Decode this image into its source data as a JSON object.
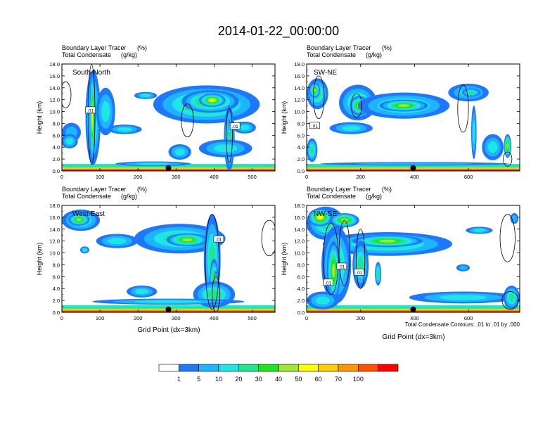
{
  "title": "2014-01-22_00:00:00",
  "panel_labels": {
    "tracer": "Boundary Layer Tracer",
    "tracer_unit": "(%)",
    "condensate": "Total Condensate",
    "condensate_unit": "(g/kg)"
  },
  "ylabel": "Height (km)",
  "xlabel": "Grid Point (dx=3km)",
  "contour_note": "Total Condensate Contours: .01 to .01 by .000",
  "colorbar": {
    "colors": [
      "#ffffff",
      "#1e78ff",
      "#1eb4ff",
      "#1ee6e6",
      "#1ee68c",
      "#1ee61e",
      "#a0e632",
      "#ffff00",
      "#ffcd00",
      "#ff9600",
      "#ff5000",
      "#ff0000"
    ],
    "labels": [
      "1",
      "5",
      "10",
      "20",
      "30",
      "40",
      "50",
      "60",
      "70",
      "100"
    ]
  },
  "chart_data": [
    {
      "type": "heatmap",
      "name": "South-North",
      "x_ticks": [
        0,
        100,
        200,
        300,
        400,
        500
      ],
      "y_ticks": [
        "0.0",
        "2.0",
        "4.0",
        "6.0",
        "8.0",
        "10.0",
        "12.0",
        "14.0",
        "16.0",
        "18.0"
      ],
      "xlim": [
        0,
        560
      ],
      "ylim": [
        0,
        18
      ],
      "marker_x": 280,
      "contour_labels": [
        {
          "text": ".01",
          "x": 75,
          "y": 10.2
        },
        {
          "text": ".01",
          "x": 455,
          "y": 7.5
        }
      ],
      "blobs": [
        {
          "x": 380,
          "y": 11.2,
          "rx": 140,
          "ry": 3.2,
          "level": 5
        },
        {
          "x": 390,
          "y": 11.7,
          "rx": 75,
          "ry": 1.9,
          "level": 6
        },
        {
          "x": 395,
          "y": 11.9,
          "rx": 35,
          "ry": 1.1,
          "level": 7
        },
        {
          "x": 220,
          "y": 12.7,
          "rx": 30,
          "ry": 0.6,
          "level": 3
        },
        {
          "x": 440,
          "y": 5.5,
          "rx": 14,
          "ry": 5.5,
          "level": 4
        },
        {
          "x": 440,
          "y": 4.5,
          "rx": 5,
          "ry": 4.2,
          "level": 7
        },
        {
          "x": 430,
          "y": 3.8,
          "rx": 70,
          "ry": 1.5,
          "level": 3
        },
        {
          "x": 480,
          "y": 7.3,
          "rx": 30,
          "ry": 1.0,
          "level": 3
        },
        {
          "x": 82,
          "y": 9.0,
          "rx": 20,
          "ry": 8.0,
          "level": 4
        },
        {
          "x": 80,
          "y": 9.0,
          "rx": 7,
          "ry": 7.8,
          "level": 7
        },
        {
          "x": 115,
          "y": 10.0,
          "rx": 25,
          "ry": 4.0,
          "level": 3
        },
        {
          "x": 25,
          "y": 6.5,
          "rx": 25,
          "ry": 1.6,
          "level": 2
        },
        {
          "x": 20,
          "y": 5.0,
          "rx": 22,
          "ry": 1.2,
          "level": 3
        },
        {
          "x": 165,
          "y": 7.0,
          "rx": 45,
          "ry": 0.8,
          "level": 3
        },
        {
          "x": 310,
          "y": 3.2,
          "rx": 30,
          "ry": 1.3,
          "level": 3
        },
        {
          "x": 240,
          "y": 1.2,
          "rx": 100,
          "ry": 0.4,
          "level": 3
        }
      ],
      "contours": [
        {
          "x": 10,
          "y": 12.8,
          "rx": 14,
          "ry": 2.2
        },
        {
          "x": 78,
          "y": 9.5,
          "rx": 9,
          "ry": 8.4
        },
        {
          "x": 330,
          "y": 8.5,
          "rx": 16,
          "ry": 2.8
        },
        {
          "x": 440,
          "y": 6.0,
          "rx": 8,
          "ry": 4.5
        }
      ]
    },
    {
      "type": "heatmap",
      "name": "SW-NE",
      "x_ticks": [
        0,
        200,
        400,
        600
      ],
      "y_ticks": [
        "0.0",
        "2.0",
        "4.0",
        "6.0",
        "8.0",
        "10.0",
        "12.0",
        "14.0",
        "16.0",
        "18.0"
      ],
      "xlim": [
        0,
        790
      ],
      "ylim": [
        0,
        18
      ],
      "marker_x": 395,
      "contour_labels": [
        {
          "text": ".01",
          "x": 30,
          "y": 7.6
        }
      ],
      "blobs": [
        {
          "x": 40,
          "y": 13.0,
          "rx": 40,
          "ry": 2.6,
          "level": 4
        },
        {
          "x": 30,
          "y": 13.6,
          "rx": 20,
          "ry": 1.3,
          "level": 6
        },
        {
          "x": 190,
          "y": 11.5,
          "rx": 70,
          "ry": 3.0,
          "level": 4
        },
        {
          "x": 195,
          "y": 11.0,
          "rx": 35,
          "ry": 1.6,
          "level": 6
        },
        {
          "x": 360,
          "y": 11.0,
          "rx": 170,
          "ry": 2.2,
          "level": 4
        },
        {
          "x": 360,
          "y": 11.0,
          "rx": 90,
          "ry": 1.0,
          "level": 6
        },
        {
          "x": 600,
          "y": 13.2,
          "rx": 75,
          "ry": 1.5,
          "level": 3
        },
        {
          "x": 610,
          "y": 13.2,
          "rx": 35,
          "ry": 0.7,
          "level": 4
        },
        {
          "x": 620,
          "y": 6.5,
          "rx": 10,
          "ry": 4.5,
          "level": 3
        },
        {
          "x": 690,
          "y": 4.0,
          "rx": 40,
          "ry": 2.2,
          "level": 3
        },
        {
          "x": 745,
          "y": 4.2,
          "rx": 14,
          "ry": 2.0,
          "level": 6
        },
        {
          "x": 165,
          "y": 7.2,
          "rx": 80,
          "ry": 1.0,
          "level": 3
        },
        {
          "x": 20,
          "y": 3.5,
          "rx": 20,
          "ry": 2.0,
          "level": 4
        },
        {
          "x": 400,
          "y": 1.2,
          "rx": 350,
          "ry": 0.3,
          "level": 2
        }
      ],
      "contours": [
        {
          "x": 45,
          "y": 12.4,
          "rx": 20,
          "ry": 3.6
        },
        {
          "x": 185,
          "y": 11.0,
          "rx": 20,
          "ry": 2.0
        },
        {
          "x": 580,
          "y": 10.5,
          "rx": 20,
          "ry": 4.0
        },
        {
          "x": 745,
          "y": 2.0,
          "rx": 16,
          "ry": 1.2
        }
      ]
    },
    {
      "type": "heatmap",
      "name": "West-East",
      "x_ticks": [
        0,
        100,
        200,
        300,
        400,
        500
      ],
      "y_ticks": [
        "0.0",
        "2.0",
        "4.0",
        "6.0",
        "8.0",
        "10.0",
        "12.0",
        "14.0",
        "16.0",
        "18.0"
      ],
      "xlim": [
        0,
        560
      ],
      "ylim": [
        0,
        18
      ],
      "marker_x": 280,
      "contour_labels": [
        {
          "text": ".01",
          "x": 412,
          "y": 12.3
        }
      ],
      "blobs": [
        {
          "x": 50,
          "y": 15.5,
          "rx": 50,
          "ry": 1.8,
          "level": 4
        },
        {
          "x": 45,
          "y": 15.6,
          "rx": 28,
          "ry": 1.0,
          "level": 6
        },
        {
          "x": 145,
          "y": 12.0,
          "rx": 55,
          "ry": 1.2,
          "level": 3
        },
        {
          "x": 310,
          "y": 12.4,
          "rx": 120,
          "ry": 2.5,
          "level": 4
        },
        {
          "x": 330,
          "y": 12.2,
          "rx": 55,
          "ry": 1.1,
          "level": 6
        },
        {
          "x": 395,
          "y": 9.0,
          "rx": 22,
          "ry": 7.5,
          "level": 4
        },
        {
          "x": 400,
          "y": 5.0,
          "rx": 12,
          "ry": 4.0,
          "level": 6
        },
        {
          "x": 405,
          "y": 4.0,
          "rx": 6,
          "ry": 3.0,
          "level": 7
        },
        {
          "x": 400,
          "y": 3.0,
          "rx": 55,
          "ry": 2.2,
          "level": 4
        },
        {
          "x": 60,
          "y": 10.5,
          "rx": 12,
          "ry": 0.6,
          "level": 3
        },
        {
          "x": 210,
          "y": 3.5,
          "rx": 40,
          "ry": 1.0,
          "level": 3
        },
        {
          "x": 280,
          "y": 1.8,
          "rx": 200,
          "ry": 0.5,
          "level": 3
        }
      ],
      "contours": [
        {
          "x": 395,
          "y": 8.5,
          "rx": 18,
          "ry": 8.0
        },
        {
          "x": 405,
          "y": 3.0,
          "rx": 10,
          "ry": 3.0
        },
        {
          "x": 545,
          "y": 12.5,
          "rx": 20,
          "ry": 3.0
        }
      ]
    },
    {
      "type": "heatmap",
      "name": "NW-SE",
      "x_ticks": [
        0,
        200,
        400,
        600
      ],
      "y_ticks": [
        "0.0",
        "2.0",
        "4.0",
        "6.0",
        "8.0",
        "10.0",
        "12.0",
        "14.0",
        "16.0",
        "18.0"
      ],
      "xlim": [
        0,
        790
      ],
      "ylim": [
        0,
        18
      ],
      "marker_x": 395,
      "contour_labels": [
        {
          "text": ".01",
          "x": 80,
          "y": 5.0
        },
        {
          "text": ".01",
          "x": 130,
          "y": 7.7
        },
        {
          "text": ".01",
          "x": 195,
          "y": 6.7
        }
      ],
      "blobs": [
        {
          "x": 70,
          "y": 15.0,
          "rx": 70,
          "ry": 2.8,
          "level": 4
        },
        {
          "x": 50,
          "y": 16.0,
          "rx": 45,
          "ry": 1.5,
          "level": 7
        },
        {
          "x": 140,
          "y": 15.5,
          "rx": 55,
          "ry": 1.2,
          "level": 6
        },
        {
          "x": 300,
          "y": 11.5,
          "rx": 240,
          "ry": 2.0,
          "level": 4
        },
        {
          "x": 300,
          "y": 12.0,
          "rx": 130,
          "ry": 1.0,
          "level": 6
        },
        {
          "x": 110,
          "y": 8.0,
          "rx": 55,
          "ry": 6.5,
          "level": 4
        },
        {
          "x": 100,
          "y": 7.0,
          "rx": 25,
          "ry": 5.0,
          "level": 6
        },
        {
          "x": 200,
          "y": 8.0,
          "rx": 30,
          "ry": 4.0,
          "level": 4
        },
        {
          "x": 640,
          "y": 13.8,
          "rx": 50,
          "ry": 0.6,
          "level": 3
        },
        {
          "x": 265,
          "y": 6.5,
          "rx": 12,
          "ry": 2.0,
          "level": 4
        },
        {
          "x": 580,
          "y": 7.5,
          "rx": 25,
          "ry": 0.6,
          "level": 2
        },
        {
          "x": 580,
          "y": 2.5,
          "rx": 200,
          "ry": 1.0,
          "level": 3
        },
        {
          "x": 760,
          "y": 2.5,
          "rx": 30,
          "ry": 2.0,
          "level": 4
        },
        {
          "x": 770,
          "y": 15.8,
          "rx": 15,
          "ry": 0.9,
          "level": 2
        },
        {
          "x": 60,
          "y": 2.0,
          "rx": 60,
          "ry": 1.5,
          "level": 3
        }
      ],
      "contours": [
        {
          "x": 90,
          "y": 9.0,
          "rx": 28,
          "ry": 6.0
        },
        {
          "x": 140,
          "y": 10.0,
          "rx": 20,
          "ry": 5.5
        },
        {
          "x": 200,
          "y": 9.0,
          "rx": 16,
          "ry": 5.0
        },
        {
          "x": 745,
          "y": 12.5,
          "rx": 28,
          "ry": 4.0
        },
        {
          "x": 755,
          "y": 2.0,
          "rx": 30,
          "ry": 1.5
        }
      ]
    }
  ]
}
